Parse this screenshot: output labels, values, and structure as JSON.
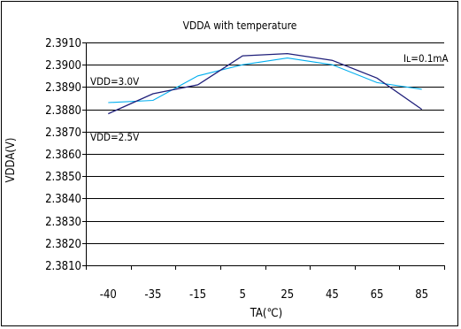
{
  "chart_data": {
    "type": "line",
    "title": "VDDA with temperature",
    "xlabel": "TA(℃)",
    "ylabel": "VDDA(V)",
    "categories": [
      "-40",
      "-35",
      "-15",
      "5",
      "25",
      "45",
      "65",
      "85"
    ],
    "ylim": [
      2.381,
      2.391
    ],
    "ytick_step": 0.001,
    "yticks": [
      "2.3810",
      "2.3820",
      "2.3830",
      "2.3840",
      "2.3850",
      "2.3860",
      "2.3870",
      "2.3880",
      "2.3890",
      "2.3900",
      "2.3910"
    ],
    "grid": true,
    "annotations": {
      "load_current": "Iʟ=0.1mA",
      "vdd_high": "VDD=3.0V",
      "vdd_low": "VDD=2.5V"
    },
    "series": [
      {
        "name": "VDD=3.0V",
        "color": "#00AEEF",
        "values": [
          2.3883,
          2.3884,
          2.3895,
          2.39,
          2.3903,
          2.39,
          2.3892,
          2.3889
        ]
      },
      {
        "name": "VDD=2.5V",
        "color": "#1F1F7A",
        "values": [
          2.3878,
          2.3887,
          2.3891,
          2.3904,
          2.3905,
          2.3902,
          2.3894,
          2.388
        ]
      }
    ]
  }
}
